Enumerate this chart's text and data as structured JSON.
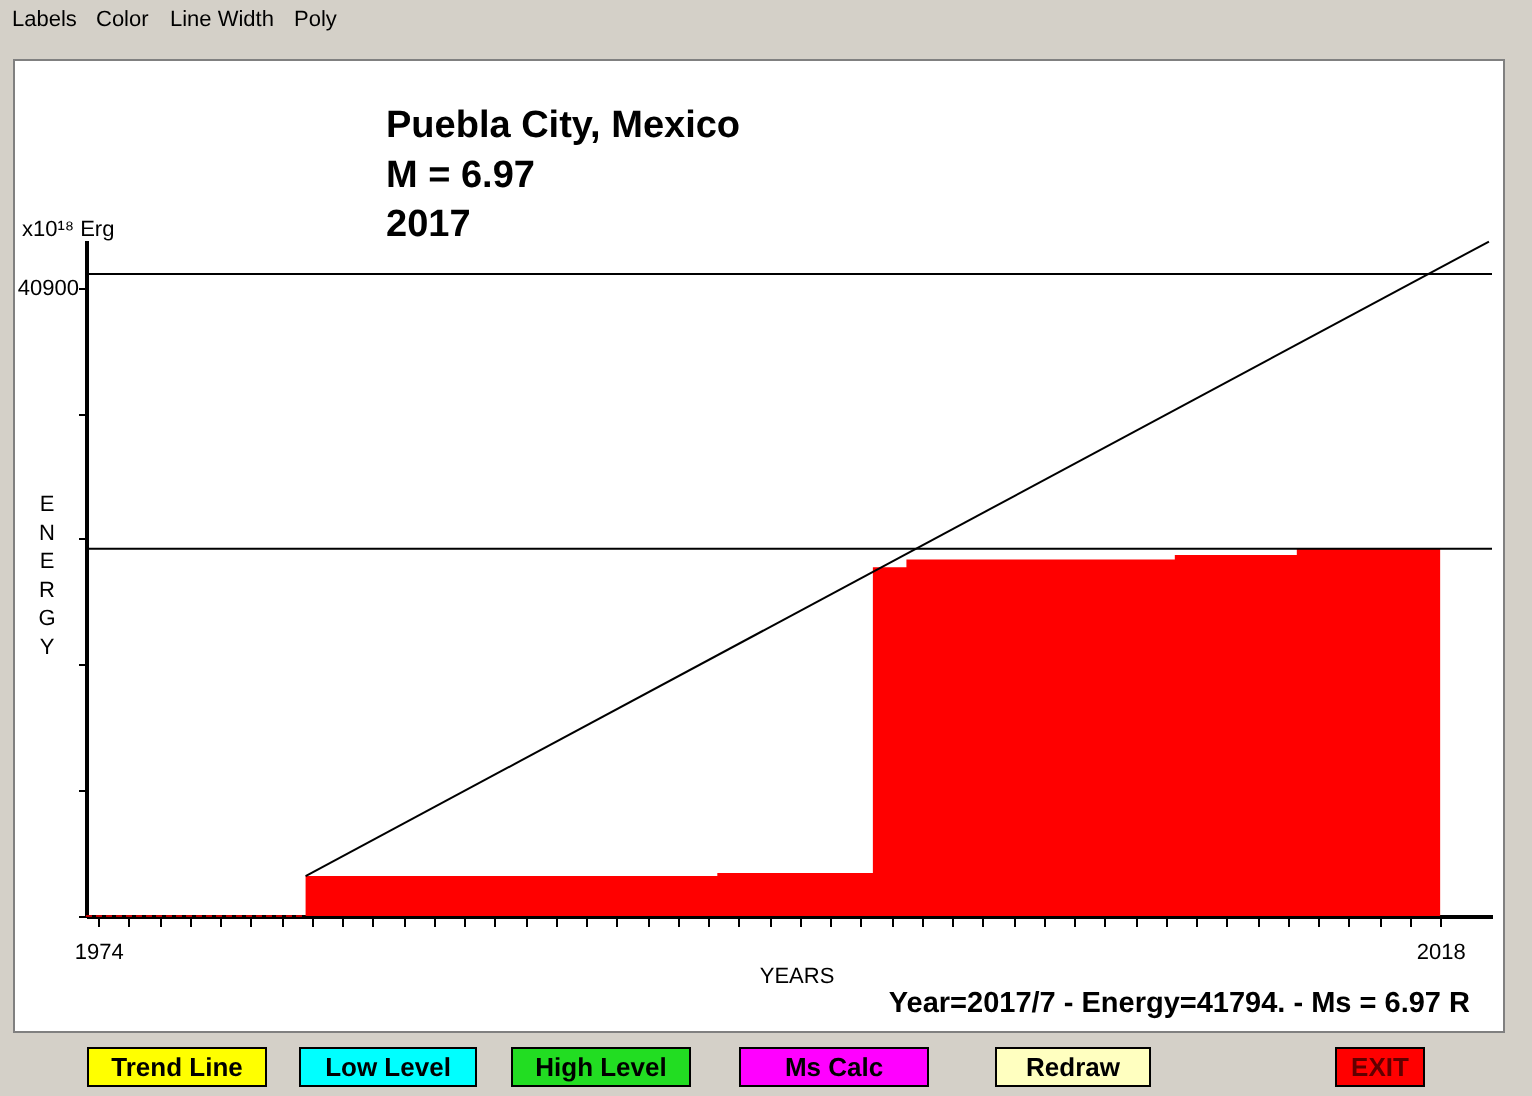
{
  "chart_data": {
    "type": "area",
    "title": "Puebla City, Mexico",
    "subtitle": "M = 6.97\n2017",
    "xlabel": "YEARS",
    "ylabel": "ENERGY",
    "annotations": [
      "x10¹⁸ Erg",
      "Year=2017/7 - Energy=41794. - Ms = 6.97 R",
      "Labels",
      "Color",
      "Line Width",
      "Poly",
      "Trend Line",
      "Low Level",
      "High Level",
      "Ms Calc",
      "Redraw",
      "EXIT"
    ],
    "series": [
      {
        "color": "#ff0000",
        "x": [
          1980.8,
          1994.3,
          1994.3,
          1999.4,
          1999.4,
          2000.5,
          2000.5,
          2009.3,
          2009.3,
          2013.3,
          2013.3,
          2018
        ],
        "values": [
          2600,
          2600,
          2800,
          2800,
          22700,
          22700,
          23200,
          23200,
          23500,
          23500,
          23900,
          23900
        ]
      },
      {
        "type": "line",
        "color": "#c00000",
        "line_style": "dashed",
        "x": [
          1973.6,
          1980.8
        ],
        "values": [
          0,
          0
        ]
      },
      {
        "type": "line",
        "color": "#000000",
        "x": [
          1980.8,
          2019.6
        ],
        "values": [
          2600,
          43900
        ]
      }
    ],
    "xlim": [
      1973.6,
      2019.7
    ],
    "ylim": [
      0,
      44000
    ],
    "xticks": [
      1974,
      {
        "value": 1975,
        "label": null
      },
      {
        "value": 1976,
        "label": null
      },
      {
        "value": 1977,
        "label": null
      },
      {
        "value": 1978,
        "label": null
      },
      {
        "value": 1979,
        "label": null
      },
      {
        "value": 1980,
        "label": null
      },
      {
        "value": 1981,
        "label": null
      },
      {
        "value": 1982,
        "label": null
      },
      {
        "value": 1983,
        "label": null
      },
      {
        "value": 1984,
        "label": null
      },
      {
        "value": 1985,
        "label": null
      },
      {
        "value": 1986,
        "label": null
      },
      {
        "value": 1987,
        "label": null
      },
      {
        "value": 1988,
        "label": null
      },
      {
        "value": 1989,
        "label": null
      },
      {
        "value": 1990,
        "label": null
      },
      {
        "value": 1991,
        "label": null
      },
      {
        "value": 1992,
        "label": null
      },
      {
        "value": 1993,
        "label": null
      },
      {
        "value": 1994,
        "label": null
      },
      {
        "value": 1995,
        "label": null
      },
      {
        "value": 1996,
        "label": null
      },
      {
        "value": 1997,
        "label": null
      },
      {
        "value": 1998,
        "label": null
      },
      {
        "value": 1999,
        "label": null
      },
      {
        "value": 2000,
        "label": null
      },
      {
        "value": 2001,
        "label": null
      },
      {
        "value": 2002,
        "label": null
      },
      {
        "value": 2003,
        "label": null
      },
      {
        "value": 2004,
        "label": null
      },
      {
        "value": 2005,
        "label": null
      },
      {
        "value": 2006,
        "label": null
      },
      {
        "value": 2007,
        "label": null
      },
      {
        "value": 2008,
        "label": null
      },
      {
        "value": 2009,
        "label": null
      },
      {
        "value": 2010,
        "label": null
      },
      {
        "value": 2011,
        "label": null
      },
      {
        "value": 2012,
        "label": null
      },
      {
        "value": 2013,
        "label": null
      },
      {
        "value": 2014,
        "label": null
      },
      {
        "value": 2015,
        "label": null
      },
      {
        "value": 2016,
        "label": null
      },
      {
        "value": 2017,
        "label": null
      },
      2018
    ],
    "yticks": [
      {
        "value": 0,
        "label": null
      },
      {
        "value": 8180,
        "label": null
      },
      {
        "value": 16360,
        "label": null
      },
      {
        "value": 24540,
        "label": null
      },
      {
        "value": 32720,
        "label": null
      },
      40900
    ],
    "ref_lines": [
      {
        "axis": "y",
        "value": 41794,
        "color": "#000000"
      },
      {
        "axis": "y",
        "value": 23900,
        "color": "#000000"
      }
    ],
    "grid": false
  }
}
